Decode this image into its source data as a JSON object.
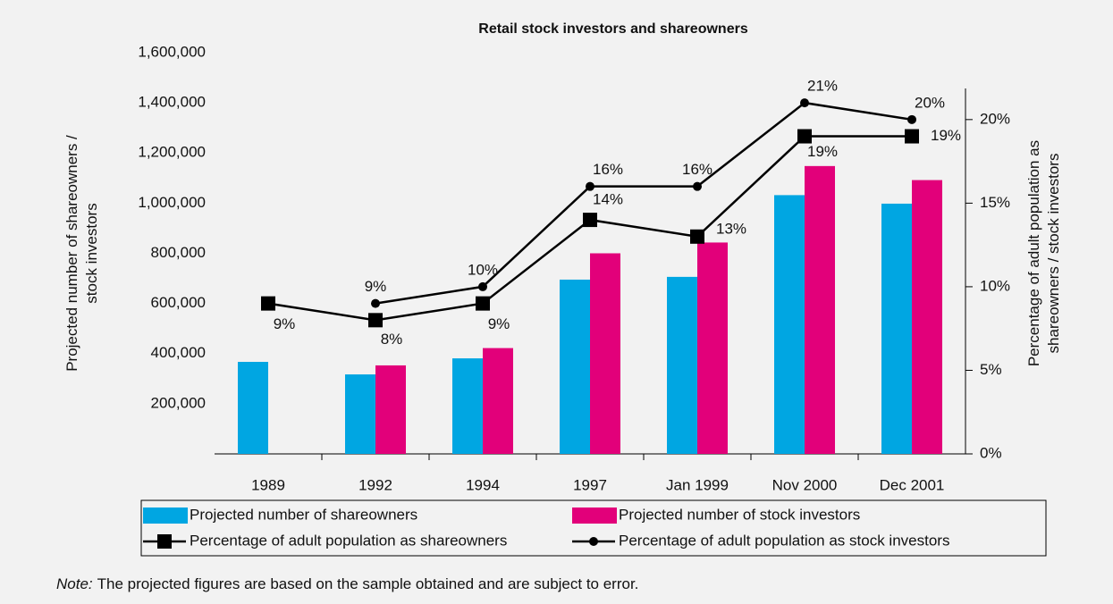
{
  "chart_data": {
    "type": "bar",
    "title": "Retail stock investors and shareowners",
    "y_label": [
      "Projected number of shareowners /",
      "stock investors"
    ],
    "y2_label": [
      "Percentage of adult population as",
      "shareowners / stock investors"
    ],
    "categories": [
      "1989",
      "1992",
      "1994",
      "1997",
      "Jan 1999",
      "Nov 2000",
      "Dec 2001"
    ],
    "ylim": [
      0,
      1600000
    ],
    "yticks": [
      {
        "value": 200000,
        "label": "200,000"
      },
      {
        "value": 400000,
        "label": "400,000"
      },
      {
        "value": 600000,
        "label": "600,000"
      },
      {
        "value": 800000,
        "label": "800,000"
      },
      {
        "value": 1000000,
        "label": "1,000,000"
      },
      {
        "value": 1200000,
        "label": "1,200,000"
      },
      {
        "value": 1400000,
        "label": "1,400,000"
      },
      {
        "value": 1600000,
        "label": "1,600,000"
      }
    ],
    "y2lim": [
      0,
      24
    ],
    "y2ticks": [
      {
        "value": 0,
        "label": "0%"
      },
      {
        "value": 5,
        "label": "5%"
      },
      {
        "value": 10,
        "label": "10%"
      },
      {
        "value": 15,
        "label": "15%"
      },
      {
        "value": 20,
        "label": "20%"
      }
    ],
    "series": [
      {
        "name": "Projected number of shareowners",
        "type": "bar",
        "color": "#00a6e2",
        "values": [
          367000,
          317000,
          381000,
          695000,
          706000,
          1032000,
          998000
        ]
      },
      {
        "name": "Projected number of stock investors",
        "type": "bar",
        "color": "#e2007a",
        "values": [
          null,
          353000,
          422000,
          800000,
          843000,
          1148000,
          1092000
        ]
      },
      {
        "name": "Percentage of adult population as shareowners",
        "type": "line",
        "marker": "square",
        "axis": "y2",
        "color": "#000000",
        "values": [
          9,
          8,
          9,
          14,
          13,
          19,
          19
        ],
        "value_labels": [
          "9%",
          "8%",
          "9%",
          "14%",
          "13%",
          "19%",
          "19%"
        ]
      },
      {
        "name": "Percentage of adult population as stock investors",
        "type": "line",
        "marker": "circle",
        "axis": "y2",
        "color": "#000000",
        "values": [
          null,
          9,
          10,
          16,
          16,
          21,
          20
        ],
        "value_labels": [
          null,
          "9%",
          "10%",
          "16%",
          "16%",
          "21%",
          "20%"
        ]
      }
    ],
    "note_label": "Note:",
    "note_text": "The projected figures are based on the sample obtained and are subject to error."
  }
}
